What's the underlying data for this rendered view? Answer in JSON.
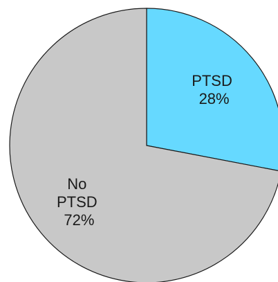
{
  "chart_data": {
    "type": "pie",
    "start_angle": "12 o'clock",
    "direction": "clockwise",
    "slices": [
      {
        "label_lines": [
          "PTSD",
          "28%"
        ],
        "value": 28,
        "color": "#66D9FF"
      },
      {
        "label_lines": [
          "No",
          "PTSD",
          "72%"
        ],
        "value": 72,
        "color": "#C8C8C8"
      }
    ]
  }
}
